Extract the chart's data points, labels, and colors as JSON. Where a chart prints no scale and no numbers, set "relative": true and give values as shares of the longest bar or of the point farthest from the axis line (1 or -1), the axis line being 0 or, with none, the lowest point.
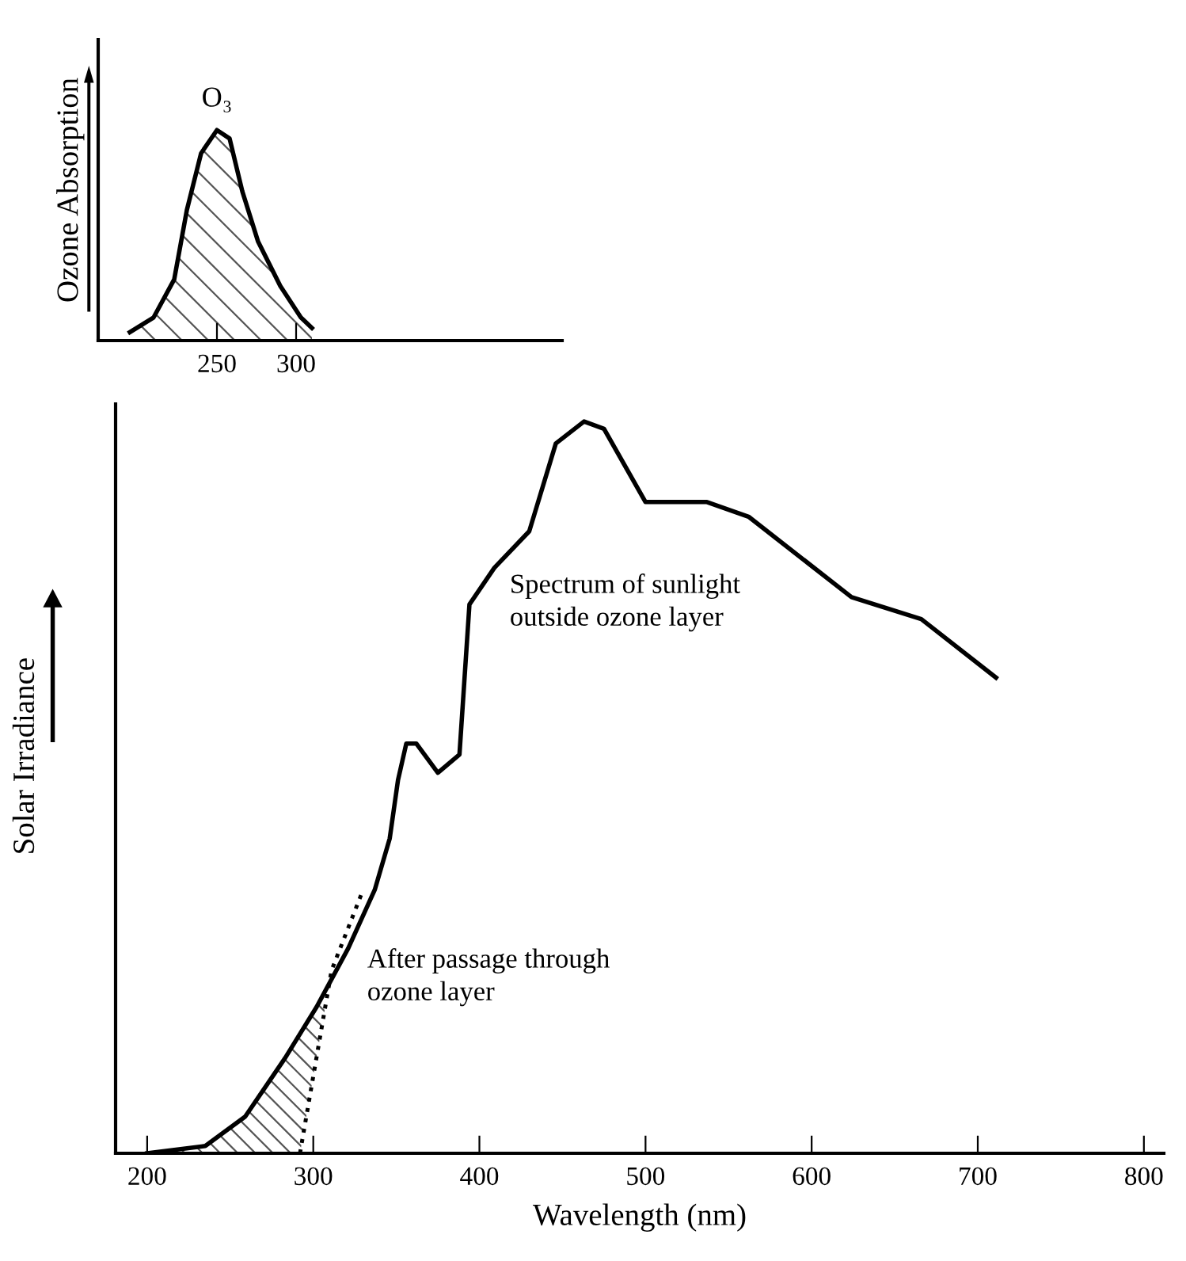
{
  "chart_data": [
    {
      "type": "line",
      "relative": true,
      "ylabel": "Ozone Absorption",
      "xlim": [
        175,
        468
      ],
      "xticks": [
        250,
        300
      ],
      "tick_labels": "x",
      "grid": false,
      "legend": false,
      "annotations": [
        {
          "text": "O₃",
          "x": 250,
          "y": 1
        }
      ],
      "series": [
        {
          "color": "#000000",
          "x": [
            195,
            210,
            223,
            231,
            240,
            250,
            258,
            266,
            276,
            290,
            303,
            310
          ],
          "values": [
            0.04,
            0.11,
            0.29,
            0.62,
            0.89,
            1.0,
            0.96,
            0.71,
            0.47,
            0.26,
            0.11,
            0.06
          ]
        }
      ]
    },
    {
      "type": "line",
      "relative": true,
      "ylabel": "Solar Irradiance",
      "xlabel": "Wavelength (nm)",
      "xlim": [
        181,
        812
      ],
      "xticks": [
        200,
        300,
        400,
        500,
        600,
        700,
        800
      ],
      "tick_labels": "x",
      "grid": false,
      "legend": false,
      "series": [
        {
          "name": "Spectrum of sunlight outside ozone layer",
          "color": "#000000",
          "line_style": "solid",
          "x": [
            200,
            235,
            259,
            283,
            302,
            321,
            337,
            346,
            351,
            356,
            362,
            375,
            388,
            394,
            409,
            430,
            446,
            463,
            475,
            500,
            512,
            537,
            562,
            624,
            666,
            711
          ],
          "values": [
            0,
            0.01,
            0.05,
            0.13,
            0.2,
            0.28,
            0.36,
            0.43,
            0.51,
            0.56,
            0.56,
            0.52,
            0.545,
            0.75,
            0.8,
            0.85,
            0.97,
            1.0,
            0.99,
            0.89,
            0.89,
            0.89,
            0.87,
            0.76,
            0.73,
            0.65
          ]
        },
        {
          "name": "After passage through ozone layer",
          "color": "#000000",
          "line_style": "dotted",
          "x": [
            292,
            311,
            330
          ],
          "values": [
            0,
            0.25,
            0.36
          ]
        }
      ]
    }
  ]
}
